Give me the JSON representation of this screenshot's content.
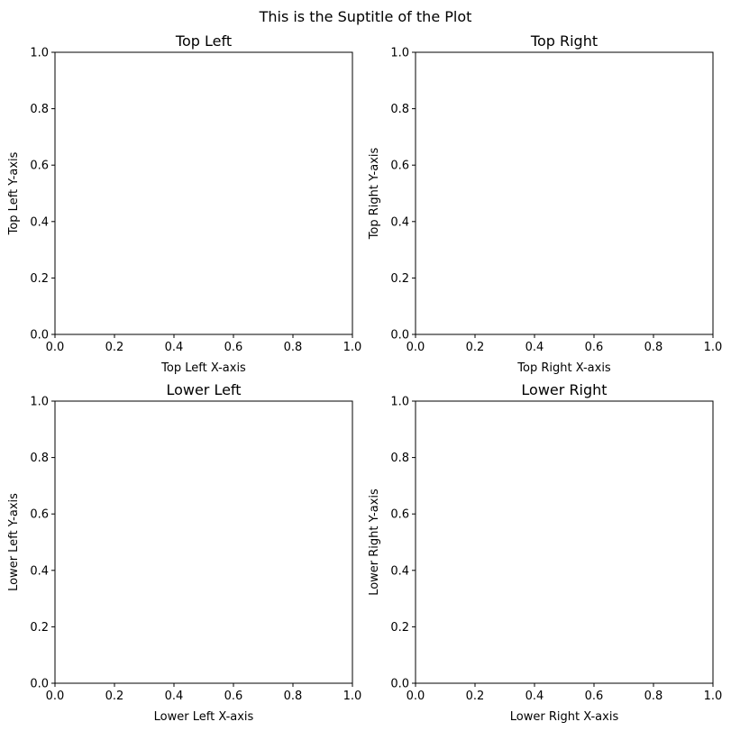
{
  "suptitle": "This is the Suptitle of the Plot",
  "chart_data": [
    {
      "type": "scatter",
      "title": "Top Left",
      "xlabel": "Top Left X-axis",
      "ylabel": "Top Left Y-axis",
      "xlim": [
        0.0,
        1.0
      ],
      "ylim": [
        0.0,
        1.0
      ],
      "xticks": [
        "0.0",
        "0.2",
        "0.4",
        "0.6",
        "0.8",
        "1.0"
      ],
      "yticks": [
        "0.0",
        "0.2",
        "0.4",
        "0.6",
        "0.8",
        "1.0"
      ],
      "series": [],
      "grid": false
    },
    {
      "type": "scatter",
      "title": "Top Right",
      "xlabel": "Top Right X-axis",
      "ylabel": "Top Right Y-axis",
      "xlim": [
        0.0,
        1.0
      ],
      "ylim": [
        0.0,
        1.0
      ],
      "xticks": [
        "0.0",
        "0.2",
        "0.4",
        "0.6",
        "0.8",
        "1.0"
      ],
      "yticks": [
        "0.0",
        "0.2",
        "0.4",
        "0.6",
        "0.8",
        "1.0"
      ],
      "series": [],
      "grid": false
    },
    {
      "type": "scatter",
      "title": "Lower Left",
      "xlabel": "Lower Left X-axis",
      "ylabel": "Lower Left Y-axis",
      "xlim": [
        0.0,
        1.0
      ],
      "ylim": [
        0.0,
        1.0
      ],
      "xticks": [
        "0.0",
        "0.2",
        "0.4",
        "0.6",
        "0.8",
        "1.0"
      ],
      "yticks": [
        "0.0",
        "0.2",
        "0.4",
        "0.6",
        "0.8",
        "1.0"
      ],
      "series": [],
      "grid": false
    },
    {
      "type": "scatter",
      "title": "Lower Right",
      "xlabel": "Lower Right X-axis",
      "ylabel": "Lower Right Y-axis",
      "xlim": [
        0.0,
        1.0
      ],
      "ylim": [
        0.0,
        1.0
      ],
      "xticks": [
        "0.0",
        "0.2",
        "0.4",
        "0.6",
        "0.8",
        "1.0"
      ],
      "yticks": [
        "0.0",
        "0.2",
        "0.4",
        "0.6",
        "0.8",
        "1.0"
      ],
      "series": [],
      "grid": false
    }
  ]
}
